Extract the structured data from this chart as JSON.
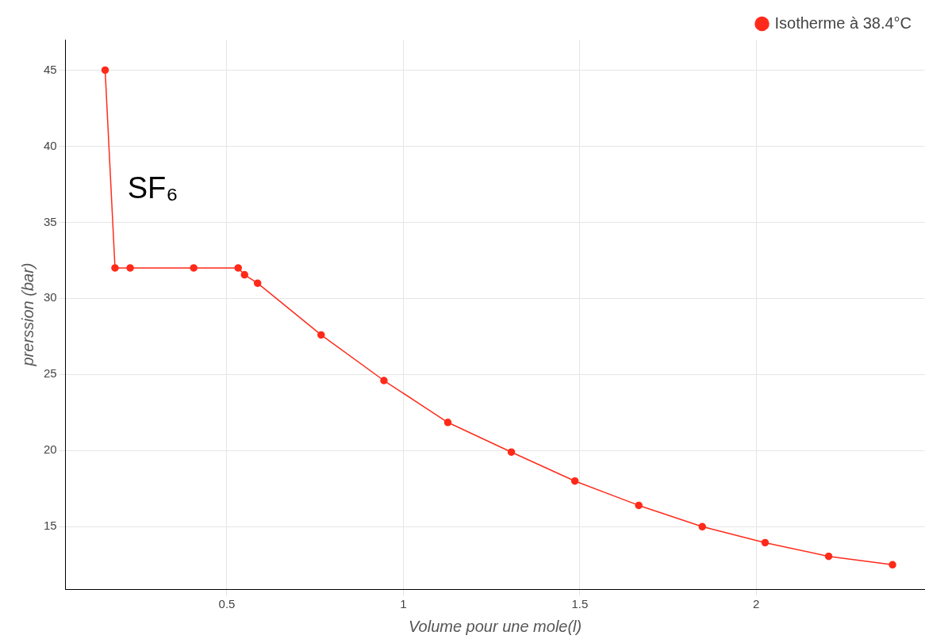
{
  "chart_data": {
    "type": "line",
    "xlabel": "Volume pour une mole(l)",
    "ylabel": "prerssion (bar)",
    "annotations": [
      "SF₆"
    ],
    "xlim": [
      0.043,
      2.477
    ],
    "xticks": [
      0.5,
      1,
      1.5,
      2
    ],
    "ylim": [
      10.9,
      47
    ],
    "yticks": [
      15,
      20,
      25,
      30,
      35,
      40,
      45
    ],
    "grid": true,
    "legend": "top right",
    "marker": "circle",
    "line_style": "solid",
    "series": [
      {
        "name": "Isotherme à 38.4°C",
        "color": "#ff2a1a",
        "x": [
          0.155,
          0.183,
          0.226,
          0.406,
          0.532,
          0.55,
          0.587,
          0.767,
          0.945,
          1.126,
          1.306,
          1.486,
          1.667,
          1.847,
          2.025,
          2.205,
          2.386
        ],
        "values": [
          45,
          32,
          32,
          32,
          32,
          31.55,
          31,
          27.6,
          24.6,
          21.85,
          19.9,
          18,
          16.4,
          15,
          13.95,
          13.05,
          12.5
        ]
      }
    ]
  }
}
